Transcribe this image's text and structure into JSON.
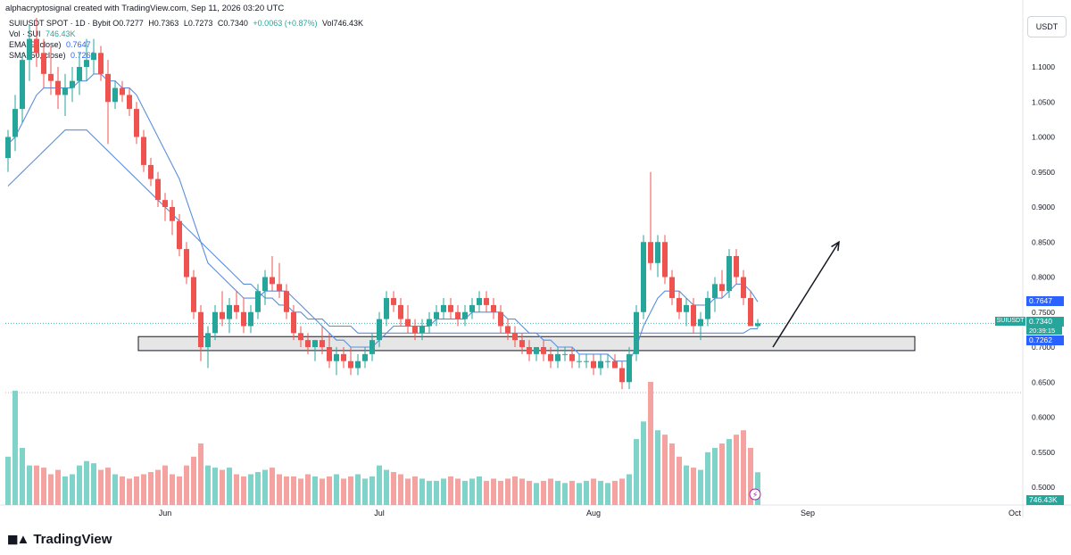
{
  "header": {
    "text": "alphacryptosignal created with TradingView.com, Sep 11, 2026 03:20 UTC"
  },
  "legend": {
    "symbol_line": "SUIUSDT SPOT · 1D · Bybit",
    "ohlc": {
      "o": "O0.7277",
      "h": "H0.7363",
      "l": "L0.7273",
      "c": "C0.7340",
      "chg": "+0.0063 (+0.87%)",
      "vol": "Vol746.43K"
    },
    "volume_line": {
      "label": "Vol · SUI",
      "value": "746.43K"
    },
    "ema_line": {
      "label": "EMA (9, close)",
      "value": "0.7647"
    },
    "sma_line": {
      "label": "SMA (50, close)",
      "value": "0.7262"
    }
  },
  "currency_button": "USDT",
  "price_labels": {
    "ema": "0.7647",
    "symbol": "SUIUSDT",
    "last": "0.7340",
    "countdown": "20:39:15",
    "sma": "0.7262",
    "volume": "746.43K"
  },
  "brand": "TradingView",
  "colors": {
    "up": "#26a69a",
    "down": "#ef5350",
    "up_vol": "#7fd3c9",
    "down_vol": "#f5a3a1",
    "ma_line": "#5b8fde",
    "support_zone": "#e6e6e6"
  },
  "chart_data": {
    "type": "candlestick",
    "symbol": "SUIUSDT",
    "interval": "1D",
    "exchange": "Bybit",
    "y_axis": {
      "ticks": [
        1.1,
        1.05,
        1.0,
        0.95,
        0.9,
        0.85,
        0.8,
        0.75,
        0.7,
        0.65,
        0.6,
        0.55,
        0.5
      ],
      "tick_labels": [
        "1.1000",
        "1.0500",
        "1.0000",
        "0.9500",
        "0.9000",
        "0.8500",
        "0.8000",
        "0.7500",
        "0.7000",
        "0.6500",
        "0.6000",
        "0.5500",
        "0.5000"
      ],
      "range": [
        0.46,
        1.15
      ]
    },
    "x_axis": {
      "labels": [
        "Jun",
        "Jul",
        "Aug",
        "Sep",
        "Oct"
      ],
      "label_index": [
        22,
        52,
        82,
        112,
        141
      ]
    },
    "candles_ohlc": [
      [
        0.97,
        1.01,
        0.95,
        1.0
      ],
      [
        1.0,
        1.06,
        0.98,
        1.04
      ],
      [
        1.04,
        1.12,
        1.02,
        1.11
      ],
      [
        1.11,
        1.16,
        1.08,
        1.14
      ],
      [
        1.14,
        1.17,
        1.1,
        1.12
      ],
      [
        1.12,
        1.14,
        1.07,
        1.09
      ],
      [
        1.09,
        1.13,
        1.06,
        1.08
      ],
      [
        1.08,
        1.1,
        1.04,
        1.06
      ],
      [
        1.06,
        1.09,
        1.03,
        1.07
      ],
      [
        1.07,
        1.1,
        1.05,
        1.08
      ],
      [
        1.08,
        1.12,
        1.06,
        1.1
      ],
      [
        1.1,
        1.14,
        1.08,
        1.11
      ],
      [
        1.11,
        1.14,
        1.09,
        1.12
      ],
      [
        1.12,
        1.13,
        1.08,
        1.09
      ],
      [
        1.09,
        1.11,
        0.99,
        1.05
      ],
      [
        1.05,
        1.08,
        1.04,
        1.07
      ],
      [
        1.07,
        1.08,
        1.05,
        1.06
      ],
      [
        1.06,
        1.07,
        1.03,
        1.04
      ],
      [
        1.04,
        1.05,
        0.99,
        1.0
      ],
      [
        1.0,
        1.01,
        0.95,
        0.96
      ],
      [
        0.96,
        0.97,
        0.93,
        0.94
      ],
      [
        0.94,
        0.95,
        0.9,
        0.91
      ],
      [
        0.91,
        0.92,
        0.88,
        0.9
      ],
      [
        0.9,
        0.91,
        0.86,
        0.88
      ],
      [
        0.88,
        0.89,
        0.83,
        0.84
      ],
      [
        0.84,
        0.85,
        0.79,
        0.8
      ],
      [
        0.8,
        0.81,
        0.74,
        0.75
      ],
      [
        0.75,
        0.76,
        0.68,
        0.7
      ],
      [
        0.7,
        0.73,
        0.67,
        0.72
      ],
      [
        0.72,
        0.76,
        0.71,
        0.75
      ],
      [
        0.75,
        0.78,
        0.73,
        0.74
      ],
      [
        0.74,
        0.77,
        0.72,
        0.76
      ],
      [
        0.76,
        0.78,
        0.74,
        0.75
      ],
      [
        0.75,
        0.77,
        0.72,
        0.73
      ],
      [
        0.73,
        0.76,
        0.72,
        0.75
      ],
      [
        0.75,
        0.79,
        0.74,
        0.78
      ],
      [
        0.78,
        0.81,
        0.76,
        0.8
      ],
      [
        0.8,
        0.83,
        0.78,
        0.79
      ],
      [
        0.79,
        0.82,
        0.77,
        0.78
      ],
      [
        0.78,
        0.79,
        0.74,
        0.75
      ],
      [
        0.75,
        0.76,
        0.71,
        0.72
      ],
      [
        0.72,
        0.73,
        0.7,
        0.71
      ],
      [
        0.71,
        0.72,
        0.69,
        0.7
      ],
      [
        0.7,
        0.71,
        0.68,
        0.71
      ],
      [
        0.71,
        0.73,
        0.69,
        0.7
      ],
      [
        0.7,
        0.72,
        0.67,
        0.68
      ],
      [
        0.68,
        0.7,
        0.66,
        0.69
      ],
      [
        0.69,
        0.7,
        0.67,
        0.68
      ],
      [
        0.68,
        0.7,
        0.66,
        0.67
      ],
      [
        0.67,
        0.69,
        0.66,
        0.68
      ],
      [
        0.68,
        0.7,
        0.67,
        0.69
      ],
      [
        0.69,
        0.72,
        0.68,
        0.71
      ],
      [
        0.71,
        0.75,
        0.7,
        0.74
      ],
      [
        0.74,
        0.78,
        0.73,
        0.77
      ],
      [
        0.77,
        0.78,
        0.75,
        0.76
      ],
      [
        0.76,
        0.77,
        0.73,
        0.74
      ],
      [
        0.74,
        0.76,
        0.72,
        0.73
      ],
      [
        0.73,
        0.74,
        0.71,
        0.72
      ],
      [
        0.72,
        0.74,
        0.71,
        0.73
      ],
      [
        0.73,
        0.75,
        0.72,
        0.74
      ],
      [
        0.74,
        0.76,
        0.73,
        0.75
      ],
      [
        0.75,
        0.77,
        0.74,
        0.76
      ],
      [
        0.76,
        0.77,
        0.74,
        0.75
      ],
      [
        0.75,
        0.76,
        0.73,
        0.74
      ],
      [
        0.74,
        0.76,
        0.73,
        0.75
      ],
      [
        0.75,
        0.77,
        0.74,
        0.76
      ],
      [
        0.76,
        0.78,
        0.75,
        0.77
      ],
      [
        0.77,
        0.78,
        0.75,
        0.76
      ],
      [
        0.76,
        0.77,
        0.74,
        0.75
      ],
      [
        0.75,
        0.76,
        0.72,
        0.73
      ],
      [
        0.73,
        0.74,
        0.71,
        0.72
      ],
      [
        0.72,
        0.73,
        0.7,
        0.71
      ],
      [
        0.71,
        0.72,
        0.69,
        0.7
      ],
      [
        0.7,
        0.71,
        0.68,
        0.69
      ],
      [
        0.69,
        0.7,
        0.68,
        0.7
      ],
      [
        0.7,
        0.71,
        0.68,
        0.69
      ],
      [
        0.69,
        0.7,
        0.67,
        0.68
      ],
      [
        0.68,
        0.7,
        0.67,
        0.69
      ],
      [
        0.69,
        0.7,
        0.68,
        0.69
      ],
      [
        0.69,
        0.7,
        0.67,
        0.68
      ],
      [
        0.68,
        0.69,
        0.67,
        0.68
      ],
      [
        0.68,
        0.69,
        0.67,
        0.68
      ],
      [
        0.68,
        0.69,
        0.66,
        0.67
      ],
      [
        0.67,
        0.69,
        0.66,
        0.68
      ],
      [
        0.68,
        0.69,
        0.67,
        0.68
      ],
      [
        0.68,
        0.69,
        0.67,
        0.67
      ],
      [
        0.67,
        0.68,
        0.64,
        0.65
      ],
      [
        0.65,
        0.7,
        0.64,
        0.69
      ],
      [
        0.69,
        0.76,
        0.68,
        0.75
      ],
      [
        0.75,
        0.86,
        0.74,
        0.85
      ],
      [
        0.85,
        0.95,
        0.81,
        0.82
      ],
      [
        0.82,
        0.86,
        0.8,
        0.85
      ],
      [
        0.85,
        0.86,
        0.79,
        0.8
      ],
      [
        0.8,
        0.81,
        0.76,
        0.77
      ],
      [
        0.77,
        0.78,
        0.74,
        0.75
      ],
      [
        0.75,
        0.77,
        0.73,
        0.76
      ],
      [
        0.76,
        0.77,
        0.72,
        0.73
      ],
      [
        0.73,
        0.75,
        0.71,
        0.74
      ],
      [
        0.74,
        0.78,
        0.73,
        0.77
      ],
      [
        0.77,
        0.8,
        0.75,
        0.79
      ],
      [
        0.79,
        0.81,
        0.77,
        0.78
      ],
      [
        0.78,
        0.84,
        0.77,
        0.83
      ],
      [
        0.83,
        0.84,
        0.79,
        0.8
      ],
      [
        0.8,
        0.81,
        0.76,
        0.77
      ],
      [
        0.77,
        0.78,
        0.73,
        0.73
      ],
      [
        0.73,
        0.74,
        0.727,
        0.734
      ]
    ],
    "ema_9": [
      0.99,
      1.0,
      1.02,
      1.04,
      1.06,
      1.07,
      1.07,
      1.07,
      1.07,
      1.07,
      1.08,
      1.08,
      1.09,
      1.09,
      1.08,
      1.08,
      1.07,
      1.07,
      1.06,
      1.04,
      1.02,
      1.0,
      0.98,
      0.96,
      0.94,
      0.91,
      0.88,
      0.85,
      0.82,
      0.81,
      0.8,
      0.79,
      0.78,
      0.77,
      0.77,
      0.77,
      0.78,
      0.78,
      0.78,
      0.78,
      0.77,
      0.76,
      0.75,
      0.74,
      0.73,
      0.72,
      0.71,
      0.71,
      0.7,
      0.7,
      0.7,
      0.7,
      0.71,
      0.72,
      0.73,
      0.73,
      0.73,
      0.73,
      0.73,
      0.73,
      0.74,
      0.74,
      0.74,
      0.74,
      0.74,
      0.75,
      0.75,
      0.75,
      0.75,
      0.75,
      0.74,
      0.74,
      0.73,
      0.72,
      0.72,
      0.71,
      0.71,
      0.7,
      0.7,
      0.7,
      0.69,
      0.69,
      0.69,
      0.69,
      0.69,
      0.68,
      0.68,
      0.68,
      0.7,
      0.73,
      0.75,
      0.77,
      0.78,
      0.78,
      0.78,
      0.77,
      0.76,
      0.76,
      0.76,
      0.77,
      0.77,
      0.78,
      0.79,
      0.79,
      0.78,
      0.7647
    ],
    "sma_50": [
      0.93,
      0.94,
      0.95,
      0.96,
      0.97,
      0.98,
      0.99,
      1.0,
      1.01,
      1.01,
      1.01,
      1.01,
      1.0,
      0.99,
      0.98,
      0.97,
      0.96,
      0.95,
      0.94,
      0.93,
      0.92,
      0.91,
      0.9,
      0.89,
      0.88,
      0.87,
      0.86,
      0.85,
      0.84,
      0.83,
      0.82,
      0.81,
      0.8,
      0.79,
      0.79,
      0.78,
      0.77,
      0.77,
      0.76,
      0.76,
      0.75,
      0.75,
      0.74,
      0.74,
      0.74,
      0.73,
      0.73,
      0.73,
      0.73,
      0.72,
      0.72,
      0.72,
      0.72,
      0.72,
      0.72,
      0.72,
      0.72,
      0.72,
      0.72,
      0.72,
      0.72,
      0.72,
      0.72,
      0.72,
      0.72,
      0.72,
      0.72,
      0.72,
      0.72,
      0.72,
      0.72,
      0.72,
      0.72,
      0.72,
      0.72,
      0.72,
      0.72,
      0.72,
      0.72,
      0.72,
      0.72,
      0.72,
      0.72,
      0.72,
      0.72,
      0.72,
      0.72,
      0.72,
      0.72,
      0.72,
      0.72,
      0.72,
      0.72,
      0.72,
      0.72,
      0.72,
      0.72,
      0.72,
      0.72,
      0.72,
      0.72,
      0.72,
      0.72,
      0.72,
      0.7262,
      0.7262
    ],
    "volume_k": [
      1100,
      2600,
      1300,
      900,
      900,
      850,
      700,
      800,
      650,
      700,
      900,
      1000,
      950,
      800,
      850,
      700,
      650,
      600,
      650,
      700,
      750,
      800,
      900,
      700,
      650,
      900,
      1100,
      1400,
      900,
      850,
      800,
      850,
      700,
      650,
      700,
      750,
      800,
      850,
      700,
      650,
      650,
      600,
      700,
      650,
      600,
      650,
      700,
      600,
      650,
      700,
      600,
      650,
      900,
      800,
      750,
      700,
      600,
      650,
      600,
      550,
      550,
      600,
      650,
      600,
      550,
      600,
      650,
      550,
      600,
      550,
      600,
      650,
      600,
      550,
      500,
      550,
      600,
      550,
      500,
      550,
      500,
      550,
      600,
      550,
      500,
      550,
      600,
      700,
      1500,
      1900,
      2800,
      1700,
      1600,
      1400,
      1100,
      900,
      850,
      800,
      1200,
      1300,
      1400,
      1500,
      1600,
      1700,
      1300,
      746
    ],
    "support_zone": [
      0.695,
      0.715
    ],
    "arrow": {
      "from": [
        0.7
      ],
      "to": [
        0.85
      ]
    },
    "last_price": 0.734,
    "dotted_levels": [
      0.734,
      0.635
    ]
  }
}
